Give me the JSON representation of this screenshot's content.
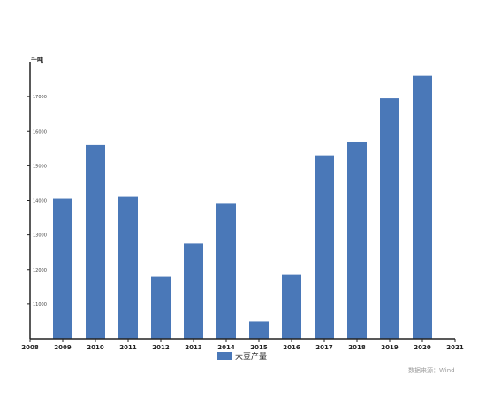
{
  "chart_data": {
    "type": "bar",
    "unit": "千吨",
    "categories": [
      "2009",
      "2010",
      "2011",
      "2012",
      "2013",
      "2014",
      "2015",
      "2016",
      "2017",
      "2018",
      "2019",
      "2020"
    ],
    "axis_ticks_x": [
      "2008",
      "2009",
      "2010",
      "2011",
      "2012",
      "2013",
      "2014",
      "2015",
      "2016",
      "2017",
      "2018",
      "2019",
      "2020",
      "2021"
    ],
    "series": [
      {
        "name": "大豆产量",
        "values": [
          14050,
          15600,
          14100,
          11800,
          12750,
          13900,
          10500,
          11850,
          15300,
          15700,
          16950,
          17600
        ]
      }
    ],
    "ylim": [
      10000,
      18000
    ],
    "yticks": [
      11000,
      12000,
      13000,
      14000,
      15000,
      16000,
      17000
    ],
    "legend_position": "bottom",
    "grid": false,
    "bar_color": "#4a78b8",
    "source": "数据来源：Wind"
  }
}
